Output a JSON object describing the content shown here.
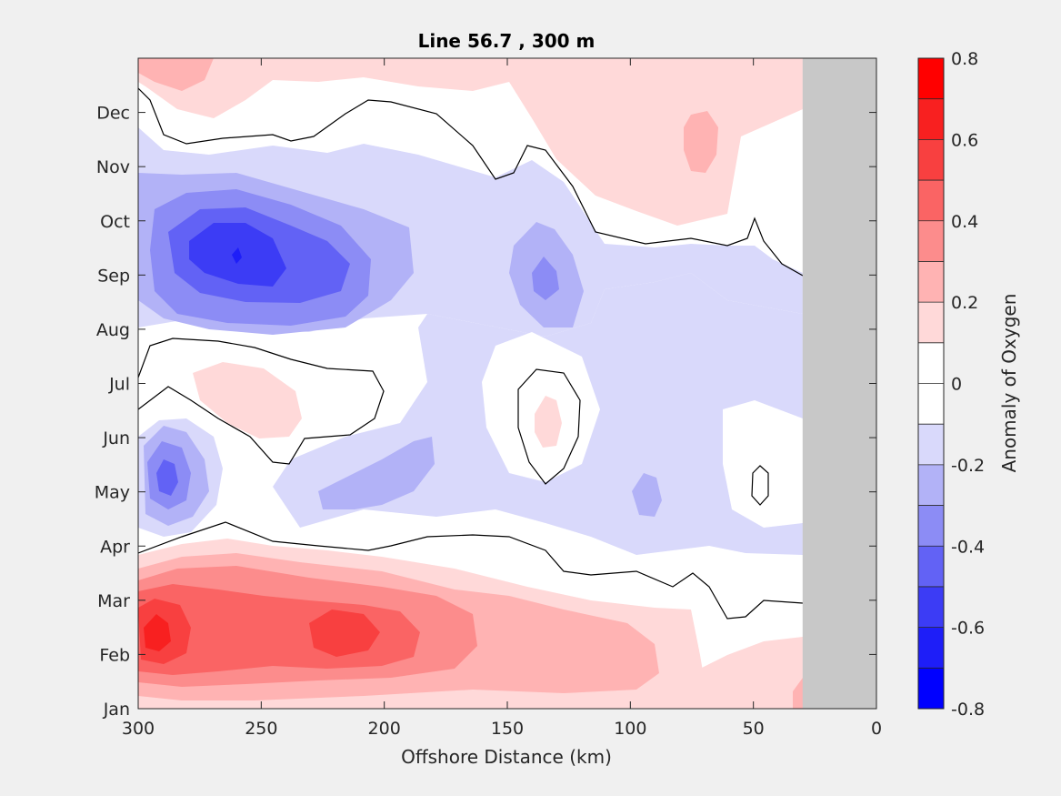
{
  "chart_data": {
    "type": "heatmap",
    "subtype": "filled-contour",
    "title": "Line 56.7 , 300 m",
    "xlabel": "Offshore Distance (km)",
    "ylabel": "",
    "xlim": [
      300,
      0
    ],
    "x_direction": "reversed",
    "xticks": [
      300,
      250,
      200,
      150,
      100,
      50,
      0
    ],
    "yticks": [
      "Jan",
      "Feb",
      "Mar",
      "Apr",
      "May",
      "Jun",
      "Jul",
      "Aug",
      "Sep",
      "Oct",
      "Nov",
      "Dec"
    ],
    "no_data_region": {
      "x_from": 30,
      "x_to": 0,
      "color": "#c8c8c8"
    },
    "colorbar": {
      "label": "Anomaly of Oxygen",
      "range": [
        -0.8,
        0.8
      ],
      "ticks": [
        -0.8,
        -0.6,
        -0.4,
        -0.2,
        0,
        0.2,
        0.4,
        0.6,
        0.8
      ],
      "tick_labels": [
        "-0.8",
        "-0.6",
        "-0.4",
        "-0.2",
        "0",
        "0.2",
        "0.4",
        "0.6",
        "0.8"
      ],
      "levels": [
        {
          "min": -0.8,
          "max": -0.7,
          "color": "#0000ff"
        },
        {
          "min": -0.7,
          "max": -0.6,
          "color": "#1e1ef8"
        },
        {
          "min": -0.6,
          "max": -0.5,
          "color": "#3c3cf5"
        },
        {
          "min": -0.5,
          "max": -0.4,
          "color": "#6262f5"
        },
        {
          "min": -0.4,
          "max": -0.3,
          "color": "#8c8cf5"
        },
        {
          "min": -0.3,
          "max": -0.2,
          "color": "#b2b2f7"
        },
        {
          "min": -0.2,
          "max": -0.1,
          "color": "#d9d9fb"
        },
        {
          "min": -0.1,
          "max": 0.0,
          "color": "#ffffff"
        },
        {
          "min": 0.0,
          "max": 0.1,
          "color": "#ffffff"
        },
        {
          "min": 0.1,
          "max": 0.2,
          "color": "#ffd9d9"
        },
        {
          "min": 0.2,
          "max": 0.3,
          "color": "#ffb3b3"
        },
        {
          "min": 0.3,
          "max": 0.4,
          "color": "#fc8c8c"
        },
        {
          "min": 0.4,
          "max": 0.5,
          "color": "#fa6464"
        },
        {
          "min": 0.5,
          "max": 0.6,
          "color": "#f84040"
        },
        {
          "min": 0.6,
          "max": 0.7,
          "color": "#f82020"
        },
        {
          "min": 0.7,
          "max": 0.8,
          "color": "#ff0000"
        }
      ]
    },
    "zero_contour": true,
    "features": [
      {
        "desc": "strong positive anomaly",
        "month": "Feb-Mar",
        "x_km": [
          300,
          140
        ],
        "max": 0.6
      },
      {
        "desc": "positive anomaly",
        "month": "Dec-Jan",
        "x_km": [
          300,
          30
        ],
        "max": 0.3
      },
      {
        "desc": "strong negative anomaly",
        "month": "Sep-Oct",
        "x_km": [
          295,
          180
        ],
        "min": -0.6
      },
      {
        "desc": "negative anomaly",
        "month": "May-Jun",
        "x_km": [
          300,
          270
        ],
        "min": -0.5
      },
      {
        "desc": "weak positive anomaly",
        "month": "Jun-Jul",
        "x_km": [
          275,
          240
        ],
        "max": 0.2
      }
    ]
  }
}
